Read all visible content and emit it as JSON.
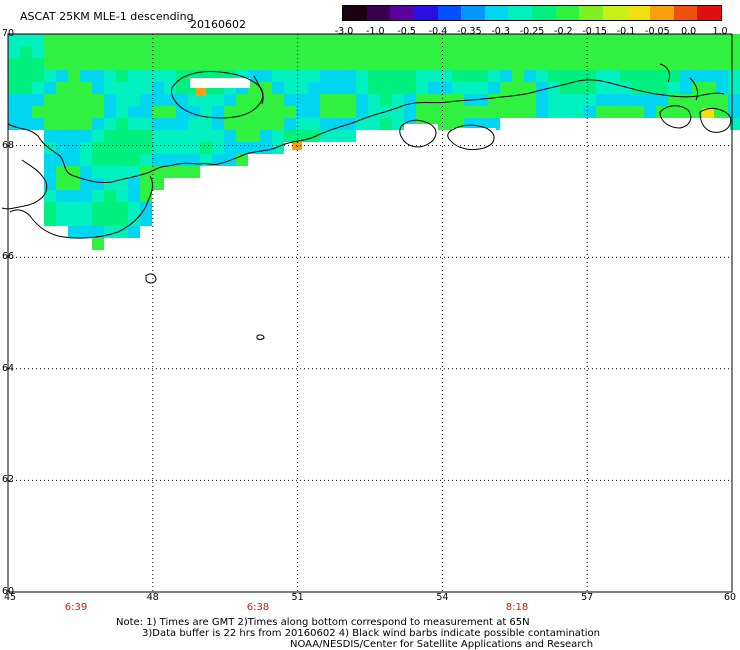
{
  "header": {
    "title": "ASCAT 25KM MLE-1 descending",
    "date": "20160602"
  },
  "colorbar": {
    "labels": [
      "-3.0",
      "-1.0",
      "-0.5",
      "-0.4",
      "-0.35",
      "-0.3",
      "-0.25",
      "-0.2",
      "-0.15",
      "-0.1",
      "-0.05",
      "0.0",
      "1.0"
    ],
    "colors": [
      "#1a0010",
      "#3c0050",
      "#5a009c",
      "#2a10e0",
      "#0050ff",
      "#0098ff",
      "#00d6f0",
      "#00f0c0",
      "#00f080",
      "#30f040",
      "#80f020",
      "#c8f018",
      "#f0e010",
      "#f8a010",
      "#f05010",
      "#e01010"
    ]
  },
  "axes": {
    "lat_labels": [
      "70",
      "68",
      "66",
      "64",
      "62",
      "60"
    ],
    "lon_labels": [
      "45",
      "48",
      "51",
      "54",
      "57",
      "60"
    ],
    "lat_values": [
      70,
      68,
      66,
      64,
      62,
      60
    ],
    "lon_values": [
      45,
      48,
      51,
      54,
      57,
      60
    ]
  },
  "times": [
    "6:39",
    "6:38",
    "8:18"
  ],
  "notes": {
    "line1": "Note: 1) Times are GMT 2)Times along bottom correspond to measurement at 65N",
    "line2": "3)Data buffer is 22 hrs from 20160602 4) Black wind barbs indicate possible contamination",
    "line3": "NOAA/NESDIS/Center for Satellite Applications and Research"
  }
}
